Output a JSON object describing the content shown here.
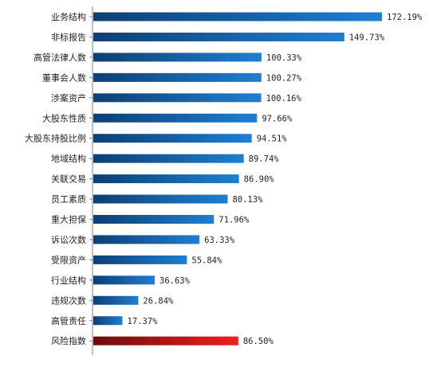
{
  "chart_data": {
    "type": "bar",
    "orientation": "horizontal",
    "categories": [
      "业务结构",
      "非标报告",
      "高管法律人数",
      "董事会人数",
      "涉案资产",
      "大股东性质",
      "大股东持股比例",
      "地域结构",
      "关联交易",
      "员工素质",
      "重大担保",
      "诉讼次数",
      "受限资产",
      "行业结构",
      "违规次数",
      "高管责任",
      "风险指数"
    ],
    "values": [
      172.19,
      149.73,
      100.33,
      100.27,
      100.16,
      97.66,
      94.51,
      89.74,
      86.9,
      80.13,
      71.96,
      63.33,
      55.84,
      36.63,
      26.84,
      17.37,
      86.5
    ],
    "value_labels": [
      "172.19%",
      "149.73%",
      "100.33%",
      "100.27%",
      "100.16%",
      "97.66%",
      "94.51%",
      "89.74%",
      "86.90%",
      "80.13%",
      "71.96%",
      "63.33%",
      "55.84%",
      "36.63%",
      "26.84%",
      "17.37%",
      "86.50%"
    ],
    "title": "",
    "xlabel": "",
    "ylabel": "",
    "xlim": [
      0,
      172.19
    ],
    "grid": false,
    "legend": "none",
    "colors": {
      "default_bar_start": "#0d3f73",
      "default_bar_end": "#1f7fd1",
      "highlight_bar_start": "#6b0b0b",
      "highlight_bar_end": "#ef2020",
      "axis": "#808080",
      "text": "#222222"
    },
    "highlight_index": 16
  }
}
